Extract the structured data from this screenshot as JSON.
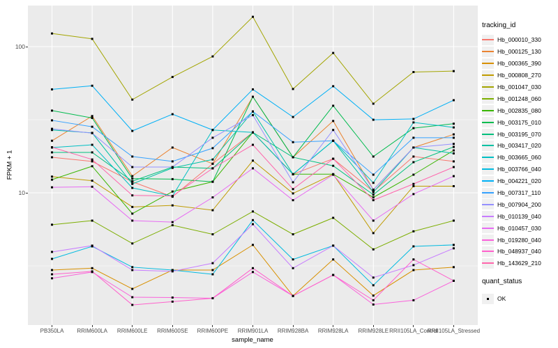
{
  "figure": {
    "background": "#FFFFFF",
    "panel_background": "#EBEBEB",
    "grid_color": "#FFFFFF",
    "axis_text_color": "#4D4D4D",
    "title_text_color": "#000000",
    "marker_color": "#000000"
  },
  "axes": {
    "x_title": "sample_name",
    "y_title": "FPKM + 1",
    "y_tick_labels": [
      "100",
      "10"
    ],
    "y_tick_values": [
      100,
      10
    ]
  },
  "legend": {
    "color_title": "tracking_id",
    "shape_title": "quant_status",
    "shape_items": [
      {
        "label": "OK",
        "marker": "black-square"
      }
    ]
  },
  "chart_data": {
    "type": "line",
    "x_categories": [
      "PB350LA",
      "RRIM600LA",
      "RRIM600LE",
      "RRIM600SE",
      "RRIM600PE",
      "RRIM901LA",
      "RRIM928BA",
      "RRIM928LA",
      "RRIM928LE",
      "RRII105LA_Control",
      "RRII105LA_Stressed"
    ],
    "xlabel": "sample_name",
    "ylabel": "FPKM + 1",
    "y_scale": "log10",
    "ylim": [
      1.25,
      190
    ],
    "y_major_gridlines": [
      10,
      100
    ],
    "y_minor_gridlines": [
      3.162,
      31.62
    ],
    "grid": "white on gray panel",
    "legend_position": "right",
    "marker": "black-square",
    "series": [
      {
        "name": "Hb_000010_330",
        "color": "#F8766D",
        "values": [
          17.5,
          16.4,
          11.9,
          9.4,
          15.8,
          25.9,
          13.4,
          17.1,
          10.2,
          17.7,
          16.4
        ]
      },
      {
        "name": "Hb_000125_130",
        "color": "#EA8331",
        "values": [
          22.7,
          33.5,
          13.0,
          20.4,
          15.8,
          45.4,
          17.5,
          31.0,
          10.5,
          20.4,
          25.1
        ]
      },
      {
        "name": "Hb_000365_390",
        "color": "#D89000",
        "values": [
          2.96,
          3.05,
          2.2,
          2.96,
          2.96,
          4.4,
          1.97,
          3.5,
          1.98,
          2.96,
          3.1
        ]
      },
      {
        "name": "Hb_000808_270",
        "color": "#C09B00",
        "values": [
          12.9,
          12.1,
          8.0,
          8.2,
          7.6,
          16.6,
          9.9,
          13.4,
          5.3,
          11.1,
          11.1
        ]
      },
      {
        "name": "Hb_001047_030",
        "color": "#A3A500",
        "values": [
          123,
          113,
          43.4,
          62,
          85.7,
          160,
          51.3,
          90.5,
          40.7,
          67,
          68
        ]
      },
      {
        "name": "Hb_001248_060",
        "color": "#7CAE00",
        "values": [
          6.05,
          6.45,
          4.5,
          6.0,
          5.2,
          7.45,
          5.2,
          6.74,
          4.1,
          5.45,
          6.45
        ]
      },
      {
        "name": "Hb_002835_080",
        "color": "#39B600",
        "values": [
          12.3,
          15.2,
          7.2,
          10.2,
          11.9,
          25.9,
          13.4,
          13.4,
          9.3,
          13.3,
          19.5
        ]
      },
      {
        "name": "Hb_003175_010",
        "color": "#00BB4E",
        "values": [
          36.5,
          32.5,
          12.5,
          12.4,
          11.9,
          45.4,
          17.5,
          39.4,
          17.7,
          27.7,
          29.7
        ]
      },
      {
        "name": "Hb_003195_070",
        "color": "#00BF7D",
        "values": [
          18.9,
          18.9,
          12.0,
          15.0,
          14.7,
          25.9,
          17.5,
          15.3,
          9.7,
          16.2,
          20.6
        ]
      },
      {
        "name": "Hb_003417_020",
        "color": "#00C1A3",
        "values": [
          26.9,
          25.7,
          11.5,
          14.8,
          16.9,
          36.0,
          13.4,
          22.7,
          10.1,
          20.4,
          18.6
        ]
      },
      {
        "name": "Hb_003665_060",
        "color": "#00BFC4",
        "values": [
          20.4,
          21.3,
          10.8,
          9.5,
          26.9,
          25.9,
          13.4,
          22.7,
          11.7,
          30.3,
          28.0
        ]
      },
      {
        "name": "Hb_003766_040",
        "color": "#00BAE0",
        "values": [
          3.53,
          4.3,
          3.1,
          2.96,
          2.77,
          6.5,
          3.5,
          4.35,
          2.33,
          4.3,
          4.4
        ]
      },
      {
        "name": "Hb_004221_020",
        "color": "#00B0F6",
        "values": [
          51,
          54,
          26.5,
          34.5,
          26.9,
          51,
          33,
          53.6,
          31.6,
          32,
          43
        ]
      },
      {
        "name": "Hb_007317_110",
        "color": "#35A2FF",
        "values": [
          31.3,
          28.3,
          17.7,
          16.4,
          20.2,
          36,
          22.2,
          22.7,
          13.3,
          23.8,
          23.8
        ]
      },
      {
        "name": "Hb_007904_200",
        "color": "#9590FF",
        "values": [
          27.4,
          25.6,
          15.0,
          15.0,
          23.8,
          34,
          11.8,
          26.9,
          10.5,
          20.4,
          21.6
        ]
      },
      {
        "name": "Hb_010139_040",
        "color": "#C77CFF",
        "values": [
          3.94,
          4.35,
          2.96,
          2.9,
          3.3,
          6.1,
          3.05,
          4.35,
          2.63,
          3.2,
          4.17
        ]
      },
      {
        "name": "Hb_010457_030",
        "color": "#E76BF3",
        "values": [
          10.9,
          11.0,
          6.45,
          6.3,
          9.3,
          14.7,
          8.9,
          13.3,
          6.45,
          9.8,
          13.0
        ]
      },
      {
        "name": "Hb_019280_040",
        "color": "#FA62DB",
        "values": [
          2.6,
          2.87,
          1.93,
          1.92,
          1.9,
          2.87,
          1.97,
          2.74,
          1.72,
          1.84,
          2.5
        ]
      },
      {
        "name": "Hb_048937_040",
        "color": "#FF61CC",
        "values": [
          2.77,
          2.9,
          1.71,
          1.8,
          1.9,
          3.05,
          1.97,
          2.74,
          1.84,
          3.5,
          2.5
        ]
      },
      {
        "name": "Hb_143629_210",
        "color": "#FF65AC",
        "values": [
          20.5,
          16.9,
          9.6,
          9.5,
          14.7,
          21.3,
          10.6,
          17.1,
          8.9,
          11.5,
          15.0
        ]
      }
    ]
  }
}
